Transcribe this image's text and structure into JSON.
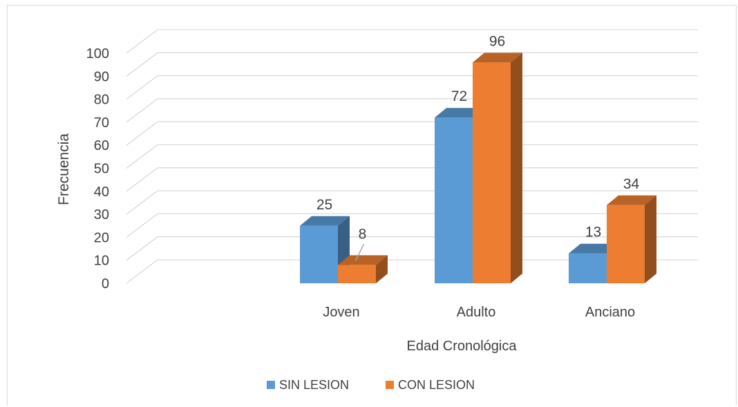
{
  "chart_data": {
    "type": "bar",
    "style": "3d-clustered-column",
    "categories": [
      "Joven",
      "Adulto",
      "Anciano"
    ],
    "series": [
      {
        "name": "SIN LESION",
        "values": [
          25,
          72,
          13
        ],
        "color": "#5b9bd5"
      },
      {
        "name": "CON LESION",
        "values": [
          8,
          96,
          34
        ],
        "color": "#ed7d31"
      }
    ],
    "title": "",
    "xlabel": "Edad Cronológica",
    "ylabel": "Frecuencia",
    "ylim": [
      0,
      100
    ],
    "yticks": [
      0,
      10,
      20,
      30,
      40,
      50,
      60,
      70,
      80,
      90,
      100
    ],
    "data_labels": true,
    "grid": true,
    "legend": "bottom"
  }
}
